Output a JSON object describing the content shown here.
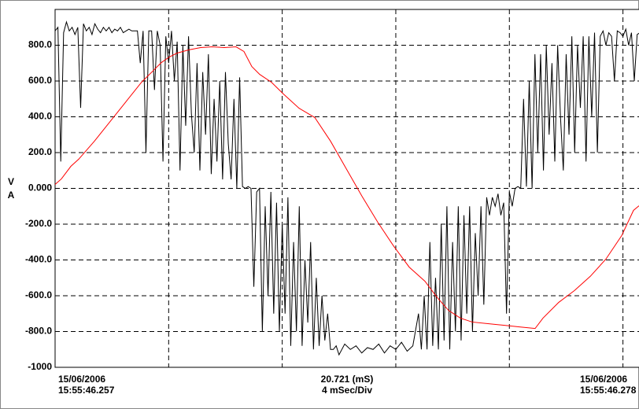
{
  "chart_data": {
    "type": "line",
    "ylabels": [
      "V",
      "A"
    ],
    "footer": {
      "left": [
        "15/06/2006",
        "15:55:46.257"
      ],
      "center": [
        "20.721 (mS)",
        "4 mSec/Div"
      ],
      "right": [
        "15/06/2006",
        "15:55:46.278"
      ]
    },
    "xlim": [
      0,
      20.721
    ],
    "xticks": [
      0,
      4,
      8,
      12,
      16,
      20
    ],
    "ylim": [
      -1000,
      1000
    ],
    "yticks": [
      {
        "value": 800,
        "label": "800.0"
      },
      {
        "value": 600,
        "label": "600.0"
      },
      {
        "value": 400,
        "label": "400.0"
      },
      {
        "value": 200,
        "label": "200.0"
      },
      {
        "value": 0,
        "label": "0.000"
      },
      {
        "value": -200,
        "label": "-200.0"
      },
      {
        "value": -400,
        "label": "-400.0"
      },
      {
        "value": -600,
        "label": "-600.0"
      },
      {
        "value": -800,
        "label": "-800.0"
      },
      -1000
    ],
    "grid": true,
    "series": [
      {
        "color": "#000000",
        "x": [
          0,
          0.1,
          0.2,
          0.3,
          0.4,
          0.5,
          0.6,
          0.7,
          0.8,
          0.9,
          1,
          1.1,
          1.2,
          1.3,
          1.4,
          1.5,
          1.6,
          1.7,
          1.8,
          1.9,
          2,
          2.1,
          2.2,
          2.3,
          2.4,
          2.5,
          2.6,
          2.7,
          2.8,
          2.9,
          3,
          3.1,
          3.2,
          3.3,
          3.4,
          3.5,
          3.6,
          3.7,
          3.8,
          3.9,
          4,
          4.1,
          4.2,
          4.3,
          4.4,
          4.5,
          4.6,
          4.7,
          4.8,
          4.9,
          5,
          5.1,
          5.2,
          5.3,
          5.4,
          5.5,
          5.6,
          5.7,
          5.8,
          5.9,
          6,
          6.1,
          6.2,
          6.3,
          6.4,
          6.5,
          6.6,
          6.7,
          6.8,
          6.9,
          7,
          7.1,
          7.2,
          7.3,
          7.4,
          7.5,
          7.6,
          7.7,
          7.8,
          7.9,
          8,
          8.1,
          8.2,
          8.3,
          8.4,
          8.5,
          8.6,
          8.7,
          8.8,
          8.9,
          9,
          9.1,
          9.2,
          9.3,
          9.4,
          9.5,
          9.6,
          9.7,
          9.8,
          9.9,
          10,
          10.2,
          10.4,
          10.6,
          10.8,
          11,
          11.2,
          11.4,
          11.6,
          11.8,
          12,
          12.2,
          12.4,
          12.6,
          12.8,
          12.9,
          13,
          13.1,
          13.2,
          13.3,
          13.4,
          13.5,
          13.6,
          13.7,
          13.8,
          13.9,
          14,
          14.1,
          14.2,
          14.3,
          14.4,
          14.5,
          14.6,
          14.7,
          14.8,
          14.9,
          15,
          15.1,
          15.2,
          15.3,
          15.4,
          15.5,
          15.6,
          15.7,
          15.8,
          15.9,
          16,
          16.1,
          16.2,
          16.3,
          16.4,
          16.5,
          16.6,
          16.7,
          16.8,
          16.9,
          17,
          17.1,
          17.2,
          17.3,
          17.4,
          17.5,
          17.6,
          17.7,
          17.8,
          17.9,
          18,
          18.1,
          18.2,
          18.3,
          18.4,
          18.5,
          18.6,
          18.7,
          18.8,
          18.9,
          19,
          19.1,
          19.2,
          19.3,
          19.4,
          19.5,
          19.6,
          19.7,
          19.8,
          19.9,
          20,
          20.1,
          20.2,
          20.3,
          20.4,
          20.5,
          20.6
        ],
        "values": [
          880,
          900,
          150,
          870,
          930,
          880,
          900,
          860,
          900,
          450,
          920,
          880,
          900,
          860,
          920,
          890,
          870,
          900,
          880,
          900,
          870,
          890,
          880,
          900,
          870,
          880,
          890,
          880,
          880,
          880,
          700,
          880,
          200,
          880,
          880,
          550,
          880,
          800,
          150,
          850,
          700,
          880,
          600,
          820,
          100,
          800,
          350,
          850,
          420,
          200,
          700,
          100,
          650,
          300,
          750,
          80,
          500,
          150,
          600,
          50,
          650,
          250,
          50,
          500,
          0,
          620,
          10,
          0,
          10,
          0,
          -550,
          -20,
          0,
          -800,
          -100,
          -600,
          -20,
          -700,
          -80,
          -800,
          -200,
          -700,
          -50,
          -880,
          -300,
          -800,
          -100,
          -880,
          -400,
          -750,
          -300,
          -900,
          -500,
          -880,
          -600,
          -850,
          -700,
          -900,
          -900,
          -880,
          -930,
          -870,
          -900,
          -880,
          -920,
          -890,
          -900,
          -870,
          -920,
          -880,
          -900,
          -860,
          -910,
          -880,
          -700,
          -900,
          -600,
          -900,
          -300,
          -880,
          -500,
          -900,
          -200,
          -850,
          -100,
          -900,
          -300,
          -800,
          -100,
          -850,
          -150,
          -700,
          -100,
          -800,
          -250,
          -600,
          -100,
          -650,
          -50,
          -150,
          -50,
          -100,
          -30,
          -150,
          -80,
          -700,
          -20,
          -100,
          0,
          10,
          0,
          500,
          10,
          600,
          0,
          750,
          200,
          750,
          100,
          800,
          300,
          700,
          150,
          800,
          400,
          100,
          750,
          300,
          850,
          200,
          800,
          450,
          850,
          150,
          850,
          400,
          870,
          200,
          850,
          880,
          800,
          870,
          850,
          600,
          880,
          870,
          850,
          890,
          800,
          870,
          600,
          860,
          870
        ]
      },
      {
        "color": "#ff0000",
        "x": [
          0,
          0.222,
          0.554,
          0.831,
          1.386,
          1.94,
          2.494,
          3.049,
          3.465,
          3.742,
          4.019,
          4.296,
          4.712,
          5.128,
          5.543,
          5.959,
          6.375,
          6.652,
          6.929,
          7.206,
          7.622,
          8.038,
          8.592,
          9.146,
          9.701,
          10.255,
          10.809,
          11.364,
          11.918,
          12.472,
          13.027,
          13.443,
          13.858,
          14.274,
          14.69,
          15.244,
          15.798,
          16.353,
          16.907,
          17.184,
          17.738,
          18.293,
          18.847,
          19.401,
          19.956,
          20.371,
          20.565
        ],
        "values": [
          22,
          53,
          123,
          163,
          264,
          374,
          484,
          594,
          659,
          703,
          734,
          756,
          774,
          787,
          791,
          787,
          791,
          765,
          681,
          637,
          593,
          528,
          448,
          396,
          264,
          110,
          -44,
          -189,
          -321,
          -440,
          -519,
          -607,
          -682,
          -725,
          -747,
          -756,
          -765,
          -774,
          -783,
          -725,
          -637,
          -571,
          -492,
          -395,
          -264,
          -123,
          -97
        ]
      }
    ]
  }
}
